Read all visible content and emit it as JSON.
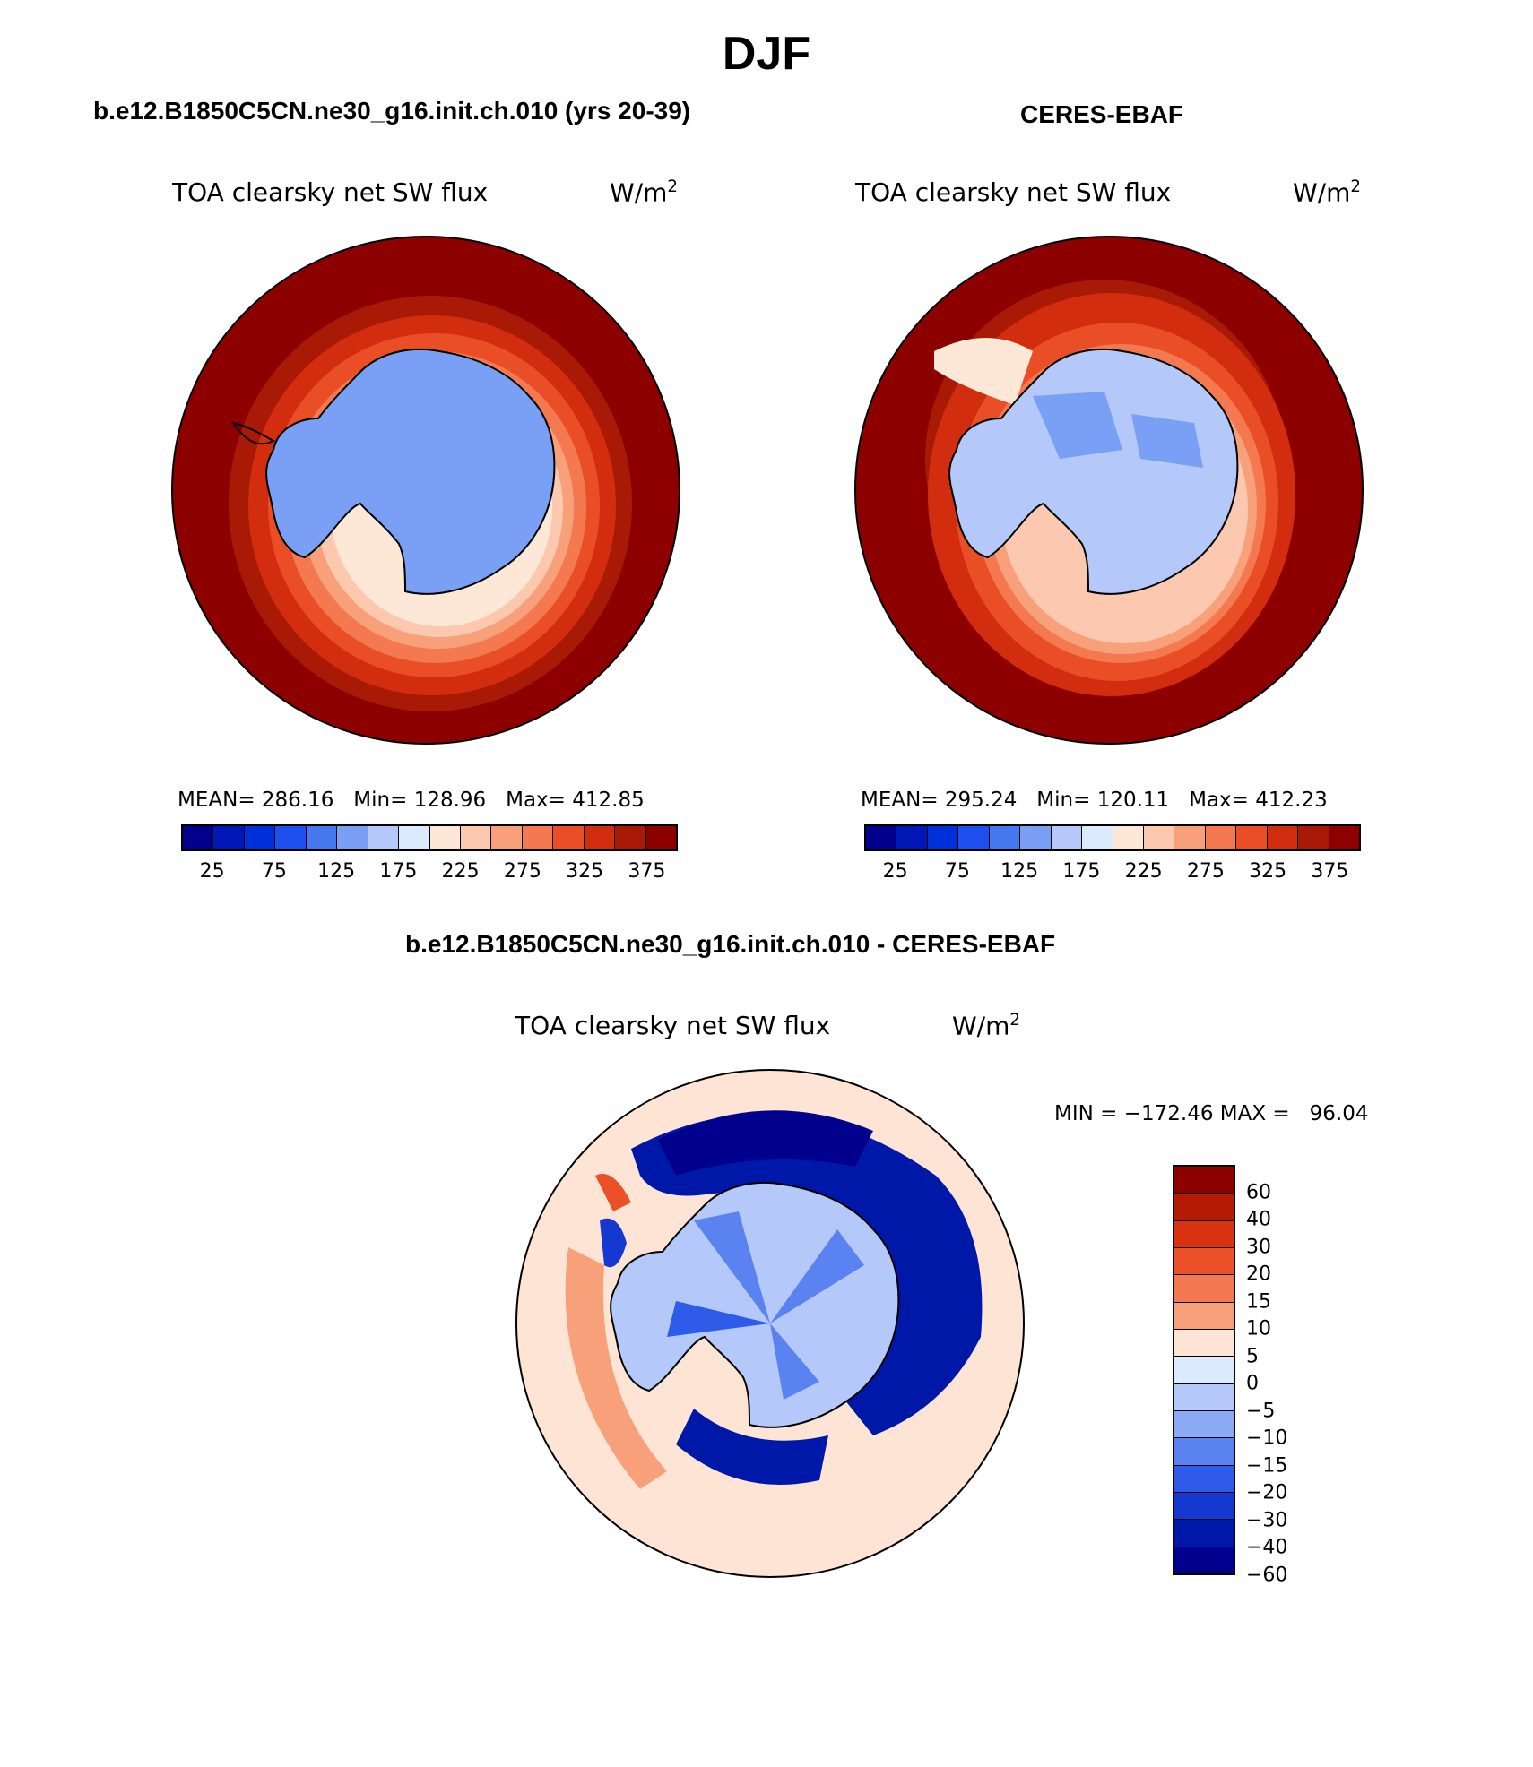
{
  "title": "DJF",
  "variable": "TOA clearsky net SW flux",
  "units_base": "W/m",
  "units_exp": "2",
  "panels": {
    "model": {
      "case": "b.e12.B1850C5CN.ne30_g16.init.ch.010 (yrs 20-39)",
      "stats": "MEAN= 286.16   Min= 128.96   Max= 412.85"
    },
    "obs": {
      "case": "CERES-EBAF",
      "stats": "MEAN= 295.24   Min= 120.11   Max= 412.23"
    },
    "diff": {
      "case": "b.e12.B1850C5CN.ne30_g16.init.ch.010 - CERES-EBAF",
      "stats": "MIN = −172.46 MAX =   96.04"
    }
  },
  "abs_colorbar": {
    "colors": [
      "#00008c",
      "#0018b8",
      "#0030dc",
      "#1e50f0",
      "#4678f0",
      "#7aa0f5",
      "#b4c8fa",
      "#dceafd",
      "#fde8d8",
      "#fcc8b0",
      "#f8a07a",
      "#f47850",
      "#ea4e26",
      "#d22d0e",
      "#a81a06",
      "#8c0000"
    ],
    "labels": [
      "25",
      "75",
      "125",
      "175",
      "225",
      "275",
      "325",
      "375"
    ]
  },
  "diff_colorbar": {
    "colors": [
      "#8c0000",
      "#b41a06",
      "#d83210",
      "#ec5028",
      "#f47850",
      "#f8a07a",
      "#fde4d4",
      "#dceafd",
      "#b4c8fa",
      "#8aaaf5",
      "#5a82f0",
      "#2e5ce8",
      "#1438d0",
      "#0018a8",
      "#00008c"
    ],
    "labels": [
      "60",
      "40",
      "30",
      "20",
      "15",
      "10",
      "5",
      "0",
      "−5",
      "−10",
      "−15",
      "−20",
      "−30",
      "−40",
      "−60"
    ]
  }
}
